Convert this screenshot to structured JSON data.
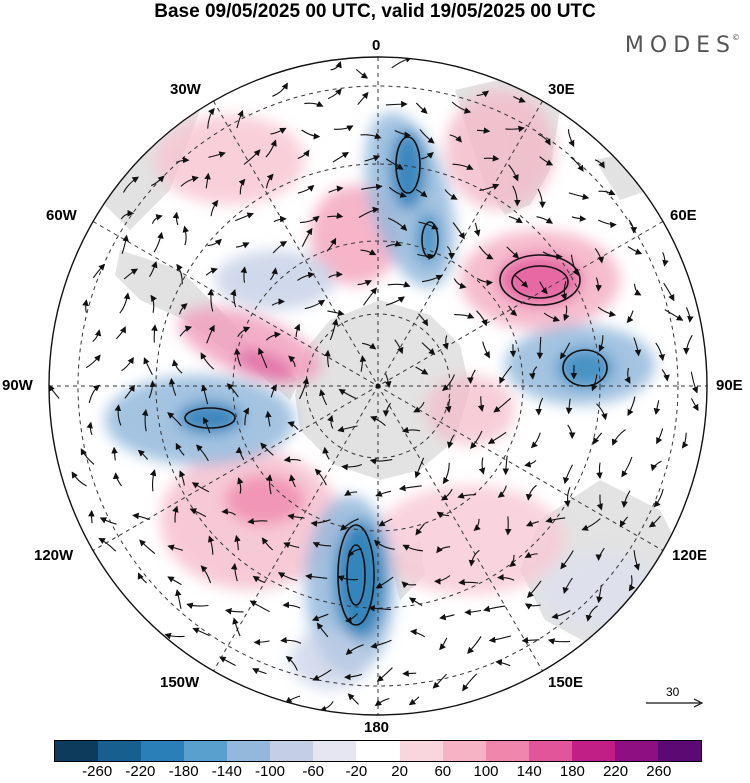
{
  "title": "Base 09/05/2025 00 UTC, valid 19/05/2025 00 UTC",
  "brand": "MODES",
  "brand_mark": "©",
  "longitude_labels": {
    "top": "0",
    "e30": "30E",
    "e60": "60E",
    "e90": "90E",
    "e120": "120E",
    "e150": "150E",
    "bottom": "180",
    "w150": "150W",
    "w120": "120W",
    "w90": "90W",
    "w60": "60W",
    "w30": "30W"
  },
  "reference_vector": {
    "label": "30"
  },
  "colorbar": {
    "colors": [
      "#0d3b5c",
      "#165f8e",
      "#2a7fb8",
      "#5aa0cf",
      "#93b8dc",
      "#c4cfe6",
      "#e6e6f2",
      "#ffffff",
      "#f9d6de",
      "#f6b3c6",
      "#ef86ac",
      "#e2559a",
      "#c11f86",
      "#8e0f82",
      "#5a0a72"
    ],
    "ticks": [
      "-260",
      "-220",
      "-180",
      "-140",
      "-100",
      "-60",
      "-20",
      "20",
      "60",
      "100",
      "140",
      "180",
      "220",
      "260"
    ]
  }
}
